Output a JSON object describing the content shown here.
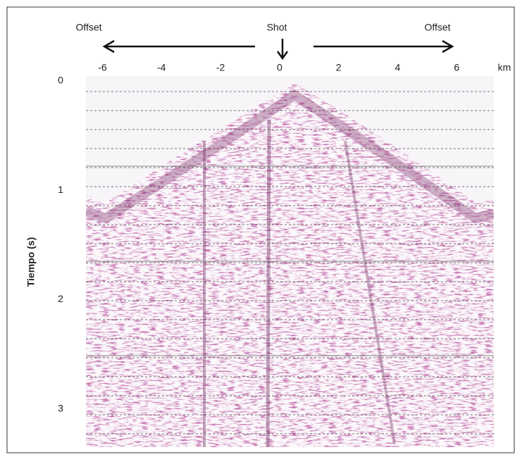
{
  "chart_data": {
    "type": "seismic",
    "annotations": [
      "Offset",
      "Shot",
      "Offset"
    ],
    "xlabel": "km",
    "ylabel": "Tiempo (s)",
    "xlim": [
      -6.56,
      7.26
    ],
    "xticks": [
      -6,
      -4,
      -2,
      0,
      2,
      4,
      6
    ],
    "ylim": [
      0,
      3.35
    ],
    "yticks": [
      0,
      1,
      2,
      3
    ]
  }
}
